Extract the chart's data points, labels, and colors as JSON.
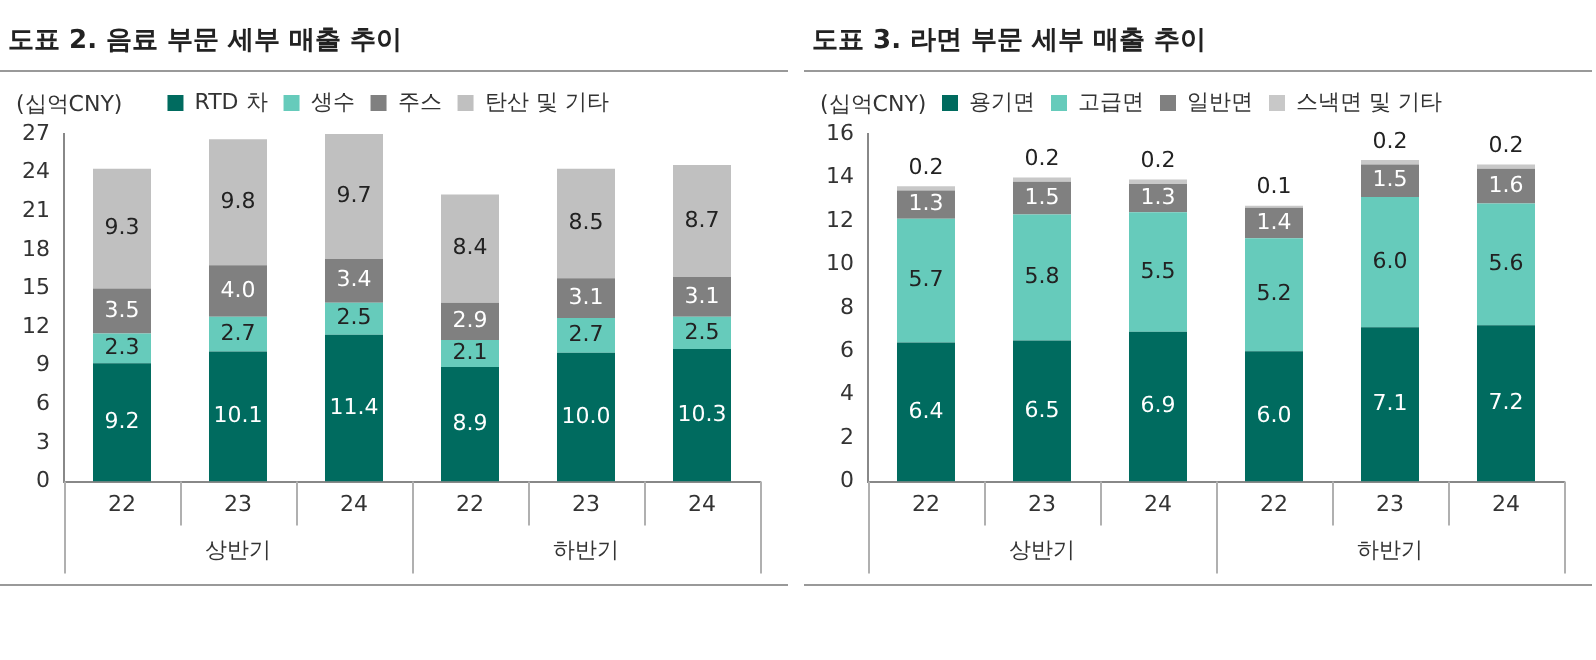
{
  "chart_data": [
    {
      "type": "bar",
      "title": "도표 2. 음료 부문 세부 매출 추이",
      "ylabel": "(십억CNY)",
      "categories": [
        "22",
        "23",
        "24",
        "22",
        "23",
        "24"
      ],
      "stacked": true,
      "ylim": [
        0,
        27
      ],
      "yticks": [
        0,
        3,
        6,
        9,
        12,
        15,
        18,
        21,
        24,
        27
      ],
      "legend": "top",
      "grid": false,
      "annotations": [
        "상반기",
        "하반기"
      ],
      "series": [
        {
          "name": "RTD 차",
          "color": "#006b5f",
          "values": [
            9.2,
            10.1,
            11.4,
            8.9,
            10.0,
            10.3
          ],
          "value_labels": [
            "9.2",
            "10.1",
            "11.4",
            "8.9",
            "10.0",
            "10.3"
          ]
        },
        {
          "name": "생수",
          "color": "#66cbbb",
          "values": [
            2.3,
            2.7,
            2.5,
            2.1,
            2.7,
            2.5
          ],
          "value_labels": [
            "2.3",
            "2.7",
            "2.5",
            "2.1",
            "2.7",
            "2.5"
          ]
        },
        {
          "name": "주스",
          "color": "#808080",
          "values": [
            3.5,
            4.0,
            3.4,
            2.9,
            3.1,
            3.1
          ],
          "value_labels": [
            "3.5",
            "4.0",
            "3.4",
            "2.9",
            "3.1",
            "3.1"
          ]
        },
        {
          "name": "탄산 및 기타",
          "color": "#c0c0c0",
          "values": [
            9.3,
            9.8,
            9.7,
            8.4,
            8.5,
            8.7
          ],
          "value_labels": [
            "9.3",
            "9.8",
            "9.7",
            "8.4",
            "8.5",
            "8.7"
          ]
        }
      ]
    },
    {
      "type": "bar",
      "title": "도표 3. 라면 부문 세부 매출 추이",
      "ylabel": "(십억CNY)",
      "categories": [
        "22",
        "23",
        "24",
        "22",
        "23",
        "24"
      ],
      "stacked": true,
      "ylim": [
        0,
        16
      ],
      "yticks": [
        0,
        2,
        4,
        6,
        8,
        10,
        12,
        14,
        16
      ],
      "legend": "top",
      "grid": false,
      "annotations": [
        "상반기",
        "하반기"
      ],
      "series": [
        {
          "name": "용기면",
          "color": "#006b5f",
          "values": [
            6.4,
            6.5,
            6.9,
            6.0,
            7.1,
            7.2
          ],
          "value_labels": [
            "6.4",
            "6.5",
            "6.9",
            "6.0",
            "7.1",
            "7.2"
          ]
        },
        {
          "name": "고급면",
          "color": "#66cbbb",
          "values": [
            5.7,
            5.8,
            5.5,
            5.2,
            6.0,
            5.6
          ],
          "value_labels": [
            "5.7",
            "5.8",
            "5.5",
            "5.2",
            "6.0",
            "5.6"
          ]
        },
        {
          "name": "일반면",
          "color": "#808080",
          "values": [
            1.3,
            1.5,
            1.3,
            1.4,
            1.5,
            1.6
          ],
          "value_labels": [
            "1.3",
            "1.5",
            "1.3",
            "1.4",
            "1.5",
            "1.6"
          ]
        },
        {
          "name": "스낵면 및 기타",
          "color": "#c8c8c8",
          "values": [
            0.2,
            0.2,
            0.2,
            0.1,
            0.2,
            0.2
          ],
          "value_labels": [
            "0.2",
            "0.2",
            "0.2",
            "0.1",
            "0.2",
            "0.2"
          ]
        }
      ]
    }
  ]
}
